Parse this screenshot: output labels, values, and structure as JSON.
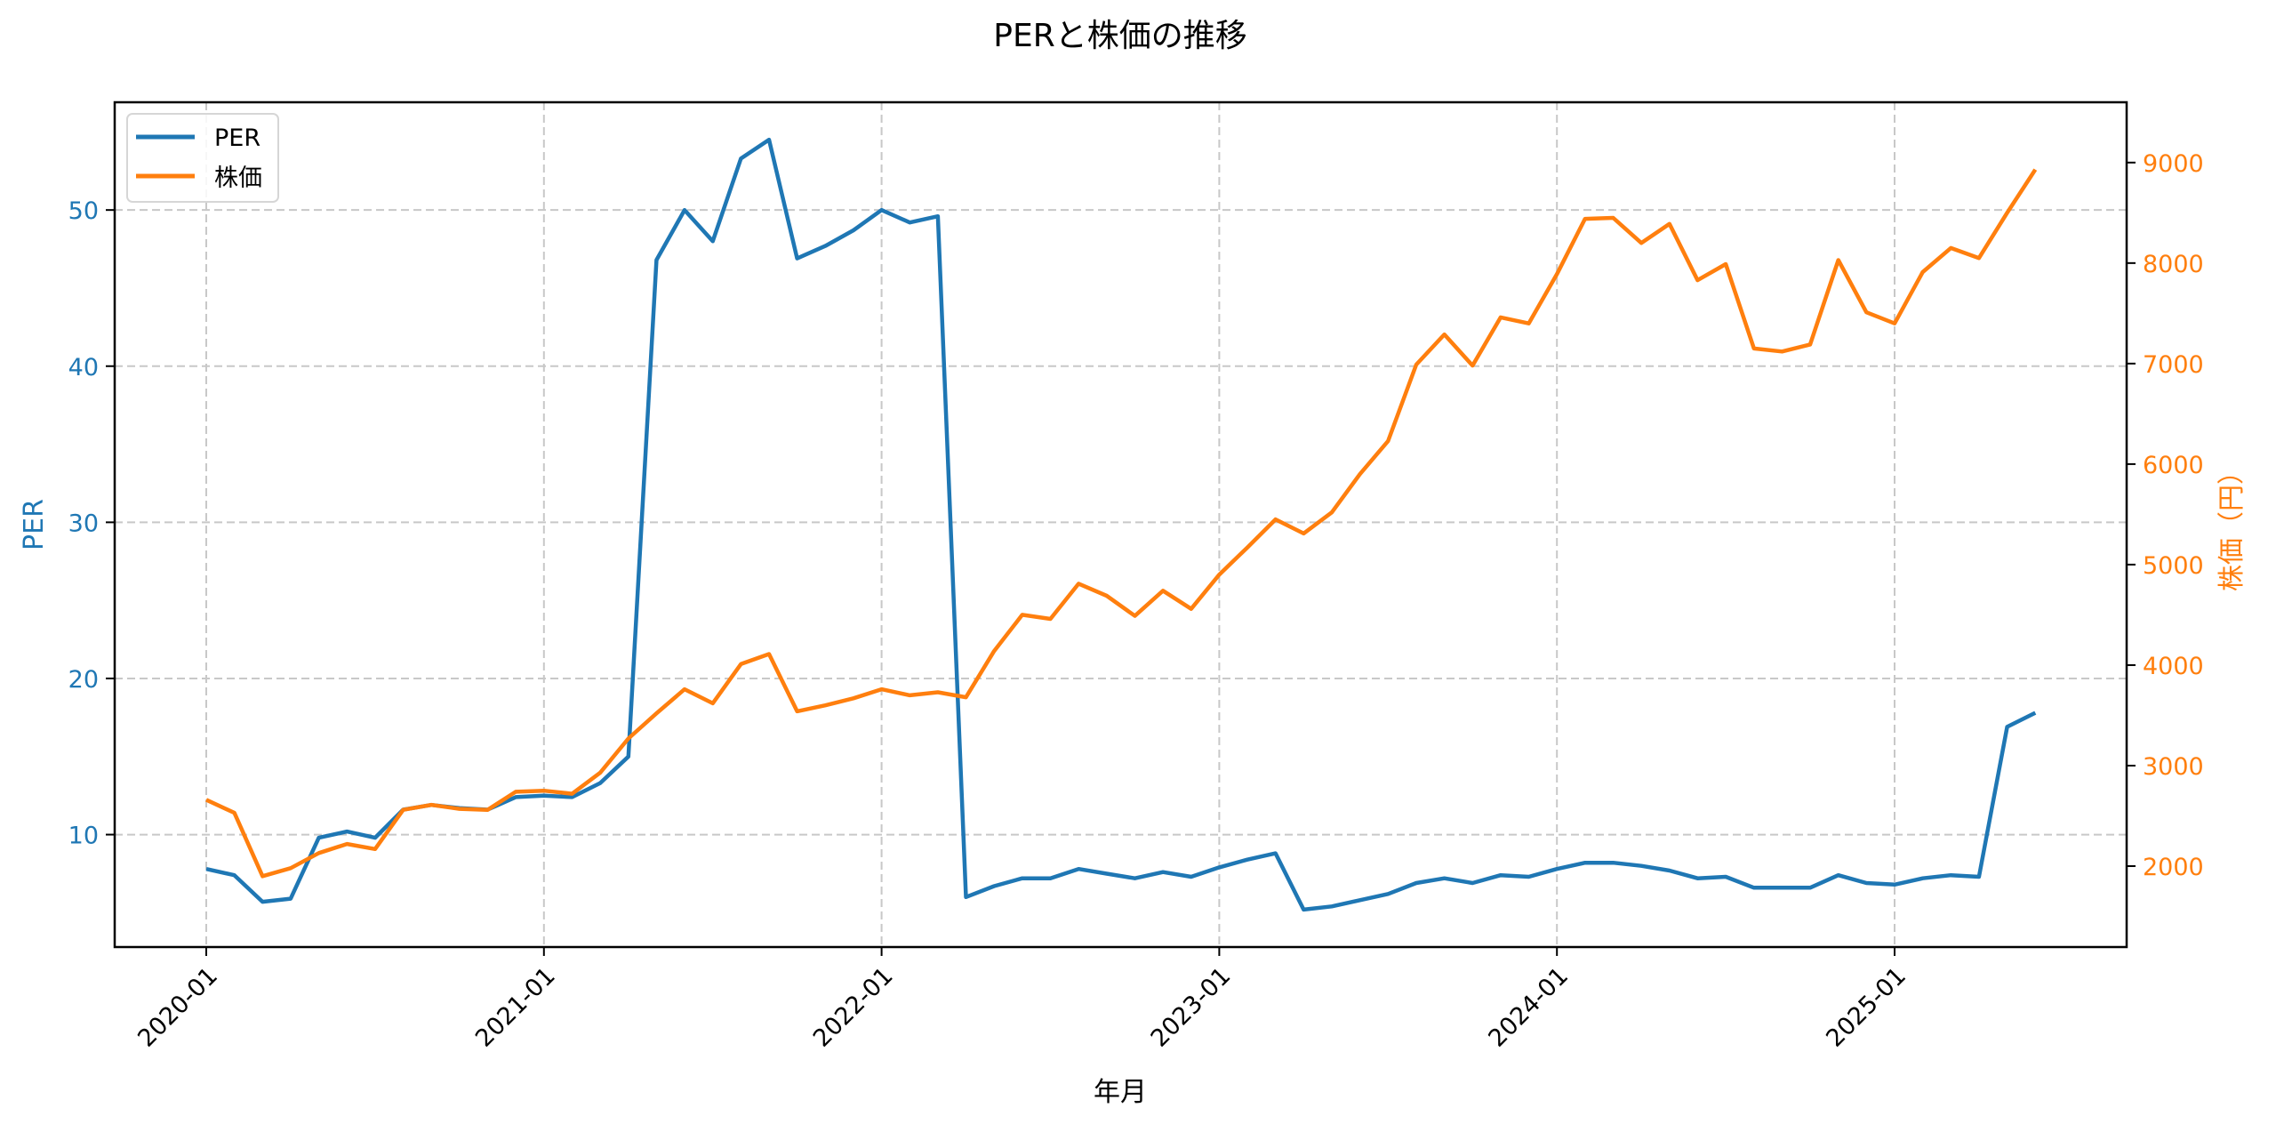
{
  "chart_data": {
    "type": "line",
    "title": "PERと株価の推移",
    "xlabel": "年月",
    "ylabel": "PER",
    "ylabel_right": "株価（円）",
    "x_tick_labels": [
      "2020-01",
      "2021-01",
      "2022-01",
      "2023-01",
      "2024-01",
      "2025-01"
    ],
    "y_ticks_left": [
      10,
      20,
      30,
      40,
      50
    ],
    "y_ticks_right": [
      2000,
      3000,
      4000,
      5000,
      6000,
      7000,
      8000,
      9000
    ],
    "ylim_left": [
      2.8,
      56.9
    ],
    "ylim_right": [
      1195,
      9600
    ],
    "grid": true,
    "legend_position": "upper left",
    "x": [
      "2020-01",
      "2020-02",
      "2020-03",
      "2020-04",
      "2020-05",
      "2020-06",
      "2020-07",
      "2020-08",
      "2020-09",
      "2020-10",
      "2020-11",
      "2020-12",
      "2021-01",
      "2021-02",
      "2021-03",
      "2021-04",
      "2021-05",
      "2021-06",
      "2021-07",
      "2021-08",
      "2021-09",
      "2021-10",
      "2021-11",
      "2021-12",
      "2022-01",
      "2022-02",
      "2022-03",
      "2022-04",
      "2022-05",
      "2022-06",
      "2022-07",
      "2022-08",
      "2022-09",
      "2022-10",
      "2022-11",
      "2022-12",
      "2023-01",
      "2023-02",
      "2023-03",
      "2023-04",
      "2023-05",
      "2023-06",
      "2023-07",
      "2023-08",
      "2023-09",
      "2023-10",
      "2023-11",
      "2023-12",
      "2024-01",
      "2024-02",
      "2024-03",
      "2024-04",
      "2024-05",
      "2024-06",
      "2024-07",
      "2024-08",
      "2024-09",
      "2024-10",
      "2024-11",
      "2024-12",
      "2025-01",
      "2025-02",
      "2025-03",
      "2025-04",
      "2025-05",
      "2025-06"
    ],
    "series": [
      {
        "name": "PER",
        "axis": "left",
        "color": "#1f77b4",
        "values": [
          7.8,
          7.4,
          5.7,
          5.9,
          9.8,
          10.2,
          9.8,
          11.6,
          11.9,
          11.7,
          11.6,
          12.4,
          12.5,
          12.4,
          13.3,
          15.0,
          46.8,
          50.0,
          48.0,
          53.3,
          54.5,
          46.9,
          47.7,
          48.7,
          50.0,
          49.2,
          49.6,
          6.0,
          6.7,
          7.2,
          7.2,
          7.8,
          7.5,
          7.2,
          7.6,
          7.3,
          7.9,
          8.4,
          8.8,
          5.2,
          5.4,
          5.8,
          6.2,
          6.9,
          7.2,
          6.9,
          7.4,
          7.3,
          7.8,
          8.2,
          8.2,
          8.0,
          7.7,
          7.2,
          7.3,
          6.6,
          6.6,
          6.6,
          7.4,
          6.9,
          6.8,
          7.2,
          7.4,
          7.3,
          16.9,
          17.8
        ]
      },
      {
        "name": "株価",
        "axis": "right",
        "color": "#ff7f0e",
        "values": [
          2660,
          2530,
          1900,
          1980,
          2130,
          2220,
          2170,
          2560,
          2610,
          2570,
          2560,
          2740,
          2750,
          2720,
          2930,
          3270,
          3520,
          3760,
          3620,
          4010,
          4110,
          3540,
          3600,
          3670,
          3760,
          3700,
          3730,
          3680,
          4140,
          4500,
          4460,
          4810,
          4690,
          4490,
          4740,
          4560,
          4900,
          5170,
          5450,
          5310,
          5520,
          5900,
          6230,
          6990,
          7290,
          6980,
          7460,
          7400,
          7890,
          8440,
          8450,
          8200,
          8390,
          7830,
          7990,
          7150,
          7120,
          7190,
          8030,
          7510,
          7400,
          7910,
          8150,
          8050,
          8500,
          8930
        ]
      }
    ]
  },
  "legend": {
    "items": [
      {
        "label": "PER",
        "color": "#1f77b4"
      },
      {
        "label": "株価",
        "color": "#ff7f0e"
      }
    ]
  }
}
